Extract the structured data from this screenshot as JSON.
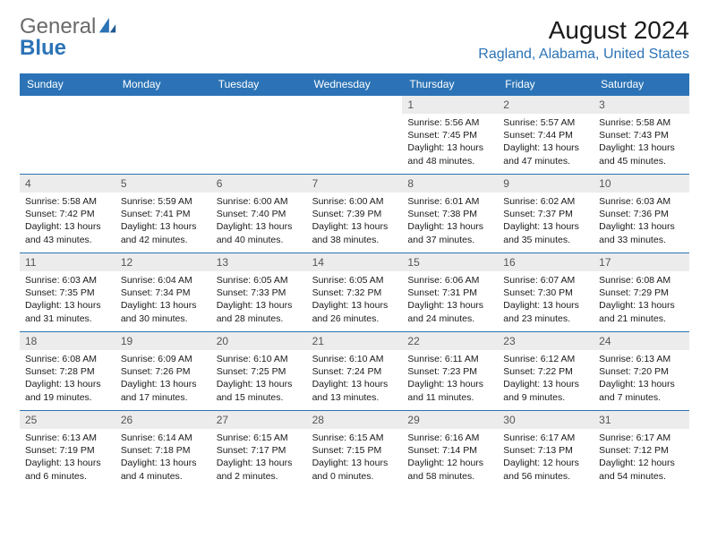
{
  "logo": {
    "word1": "General",
    "word2": "Blue"
  },
  "title": "August 2024",
  "location": "Ragland, Alabama, United States",
  "colors": {
    "accent": "#2b73b6",
    "dayStripe": "#ececec"
  },
  "dow": [
    "Sunday",
    "Monday",
    "Tuesday",
    "Wednesday",
    "Thursday",
    "Friday",
    "Saturday"
  ],
  "weeks": [
    [
      {
        "n": "",
        "empty": true
      },
      {
        "n": "",
        "empty": true
      },
      {
        "n": "",
        "empty": true
      },
      {
        "n": "",
        "empty": true
      },
      {
        "n": "1",
        "sr": "5:56 AM",
        "ss": "7:45 PM",
        "dl": "13 hours and 48 minutes."
      },
      {
        "n": "2",
        "sr": "5:57 AM",
        "ss": "7:44 PM",
        "dl": "13 hours and 47 minutes."
      },
      {
        "n": "3",
        "sr": "5:58 AM",
        "ss": "7:43 PM",
        "dl": "13 hours and 45 minutes."
      }
    ],
    [
      {
        "n": "4",
        "sr": "5:58 AM",
        "ss": "7:42 PM",
        "dl": "13 hours and 43 minutes."
      },
      {
        "n": "5",
        "sr": "5:59 AM",
        "ss": "7:41 PM",
        "dl": "13 hours and 42 minutes."
      },
      {
        "n": "6",
        "sr": "6:00 AM",
        "ss": "7:40 PM",
        "dl": "13 hours and 40 minutes."
      },
      {
        "n": "7",
        "sr": "6:00 AM",
        "ss": "7:39 PM",
        "dl": "13 hours and 38 minutes."
      },
      {
        "n": "8",
        "sr": "6:01 AM",
        "ss": "7:38 PM",
        "dl": "13 hours and 37 minutes."
      },
      {
        "n": "9",
        "sr": "6:02 AM",
        "ss": "7:37 PM",
        "dl": "13 hours and 35 minutes."
      },
      {
        "n": "10",
        "sr": "6:03 AM",
        "ss": "7:36 PM",
        "dl": "13 hours and 33 minutes."
      }
    ],
    [
      {
        "n": "11",
        "sr": "6:03 AM",
        "ss": "7:35 PM",
        "dl": "13 hours and 31 minutes."
      },
      {
        "n": "12",
        "sr": "6:04 AM",
        "ss": "7:34 PM",
        "dl": "13 hours and 30 minutes."
      },
      {
        "n": "13",
        "sr": "6:05 AM",
        "ss": "7:33 PM",
        "dl": "13 hours and 28 minutes."
      },
      {
        "n": "14",
        "sr": "6:05 AM",
        "ss": "7:32 PM",
        "dl": "13 hours and 26 minutes."
      },
      {
        "n": "15",
        "sr": "6:06 AM",
        "ss": "7:31 PM",
        "dl": "13 hours and 24 minutes."
      },
      {
        "n": "16",
        "sr": "6:07 AM",
        "ss": "7:30 PM",
        "dl": "13 hours and 23 minutes."
      },
      {
        "n": "17",
        "sr": "6:08 AM",
        "ss": "7:29 PM",
        "dl": "13 hours and 21 minutes."
      }
    ],
    [
      {
        "n": "18",
        "sr": "6:08 AM",
        "ss": "7:28 PM",
        "dl": "13 hours and 19 minutes."
      },
      {
        "n": "19",
        "sr": "6:09 AM",
        "ss": "7:26 PM",
        "dl": "13 hours and 17 minutes."
      },
      {
        "n": "20",
        "sr": "6:10 AM",
        "ss": "7:25 PM",
        "dl": "13 hours and 15 minutes."
      },
      {
        "n": "21",
        "sr": "6:10 AM",
        "ss": "7:24 PM",
        "dl": "13 hours and 13 minutes."
      },
      {
        "n": "22",
        "sr": "6:11 AM",
        "ss": "7:23 PM",
        "dl": "13 hours and 11 minutes."
      },
      {
        "n": "23",
        "sr": "6:12 AM",
        "ss": "7:22 PM",
        "dl": "13 hours and 9 minutes."
      },
      {
        "n": "24",
        "sr": "6:13 AM",
        "ss": "7:20 PM",
        "dl": "13 hours and 7 minutes."
      }
    ],
    [
      {
        "n": "25",
        "sr": "6:13 AM",
        "ss": "7:19 PM",
        "dl": "13 hours and 6 minutes."
      },
      {
        "n": "26",
        "sr": "6:14 AM",
        "ss": "7:18 PM",
        "dl": "13 hours and 4 minutes."
      },
      {
        "n": "27",
        "sr": "6:15 AM",
        "ss": "7:17 PM",
        "dl": "13 hours and 2 minutes."
      },
      {
        "n": "28",
        "sr": "6:15 AM",
        "ss": "7:15 PM",
        "dl": "13 hours and 0 minutes."
      },
      {
        "n": "29",
        "sr": "6:16 AM",
        "ss": "7:14 PM",
        "dl": "12 hours and 58 minutes."
      },
      {
        "n": "30",
        "sr": "6:17 AM",
        "ss": "7:13 PM",
        "dl": "12 hours and 56 minutes."
      },
      {
        "n": "31",
        "sr": "6:17 AM",
        "ss": "7:12 PM",
        "dl": "12 hours and 54 minutes."
      }
    ]
  ],
  "labels": {
    "sunrise": "Sunrise:",
    "sunset": "Sunset:",
    "daylight": "Daylight:"
  }
}
